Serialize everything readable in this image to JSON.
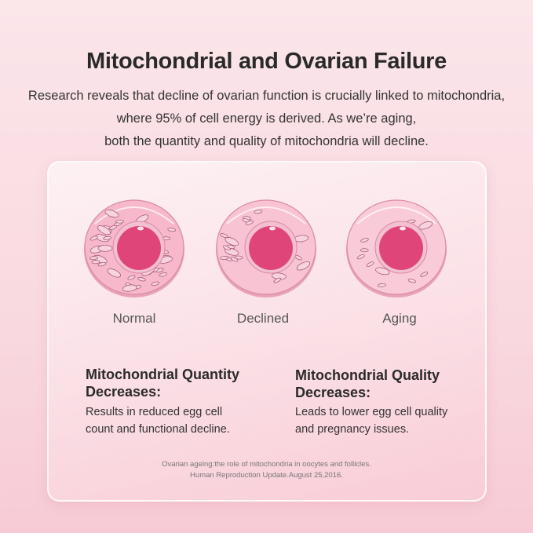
{
  "header": {
    "title": "Mitochondrial and Ovarian Failure",
    "intro": [
      "Research reveals that decline of ovarian function is crucially linked to mitochondria,",
      "where 95% of cell energy is derived. As we’re aging,",
      "both the quantity and quality of mitochondria will decline."
    ]
  },
  "cells": [
    {
      "label": "Normal"
    },
    {
      "label": "Declined"
    },
    {
      "label": "Aging"
    }
  ],
  "sections": [
    {
      "heading": [
        "Mitochondrial Quantity",
        "Decreases:"
      ],
      "body": [
        "Results in reduced egg cell",
        "count and functional decline."
      ]
    },
    {
      "heading": [
        "Mitochondrial Quality",
        "Decreases:"
      ],
      "body": [
        "Leads to lower egg cell quality",
        "and pregnancy issues."
      ]
    }
  ],
  "reference": [
    "Ovarian ageing:the role of mitochondria in oocytes and follicles.",
    "Human Reproduction Update.August 25,2016."
  ],
  "colors": {
    "cytoplasm": "#f7b8cc",
    "nucleus": "#e0457a",
    "text": "#2a2a2a"
  }
}
